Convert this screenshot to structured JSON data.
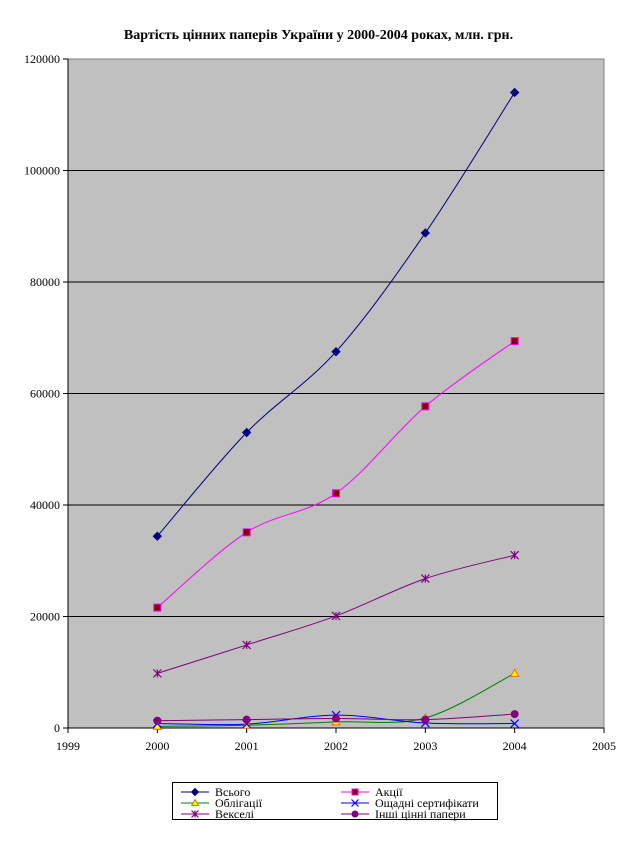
{
  "chart_data": {
    "type": "line",
    "title": "Вартість цінних паперів України у 2000-2004 роках, млн. грн.",
    "xlabel": "",
    "ylabel": "",
    "xlim": [
      1999,
      2005
    ],
    "ylim": [
      0,
      120000
    ],
    "x_ticks": [
      "1999",
      "2000",
      "2001",
      "2002",
      "2003",
      "2004",
      "2005"
    ],
    "y_ticks": [
      "0",
      "20000",
      "40000",
      "60000",
      "80000",
      "100000",
      "120000"
    ],
    "grid": "horizontal",
    "plot_background": "#c0c0c0",
    "legend_position": "bottom",
    "x": [
      2000,
      2001,
      2002,
      2003,
      2004
    ],
    "series": [
      {
        "name": "Всього",
        "color": "#000080",
        "marker": "diamond",
        "values": [
          34400,
          53000,
          67500,
          88800,
          114000
        ]
      },
      {
        "name": "Акції",
        "color": "#ff00ff",
        "marker": "square",
        "marker_fill": "#800000",
        "values": [
          21600,
          35100,
          42100,
          57700,
          69400
        ]
      },
      {
        "name": "Облігації",
        "color": "#008000",
        "marker": "triangle",
        "marker_fill": "#ffff00",
        "marker_stroke": "#ff6600",
        "values": [
          300,
          500,
          1100,
          1800,
          9800
        ]
      },
      {
        "name": "Ощадні сертифікати",
        "color": "#0000ff",
        "marker": "x",
        "values": [
          800,
          700,
          2300,
          900,
          800
        ]
      },
      {
        "name": "Векселі",
        "color": "#800080",
        "marker": "star",
        "values": [
          9800,
          14900,
          20100,
          26800,
          31000
        ]
      },
      {
        "name": "Інші цінні папери",
        "color": "#800080",
        "marker": "circle",
        "marker_fill": "#800080",
        "values": [
          1300,
          1500,
          1700,
          1500,
          2500
        ]
      }
    ]
  }
}
